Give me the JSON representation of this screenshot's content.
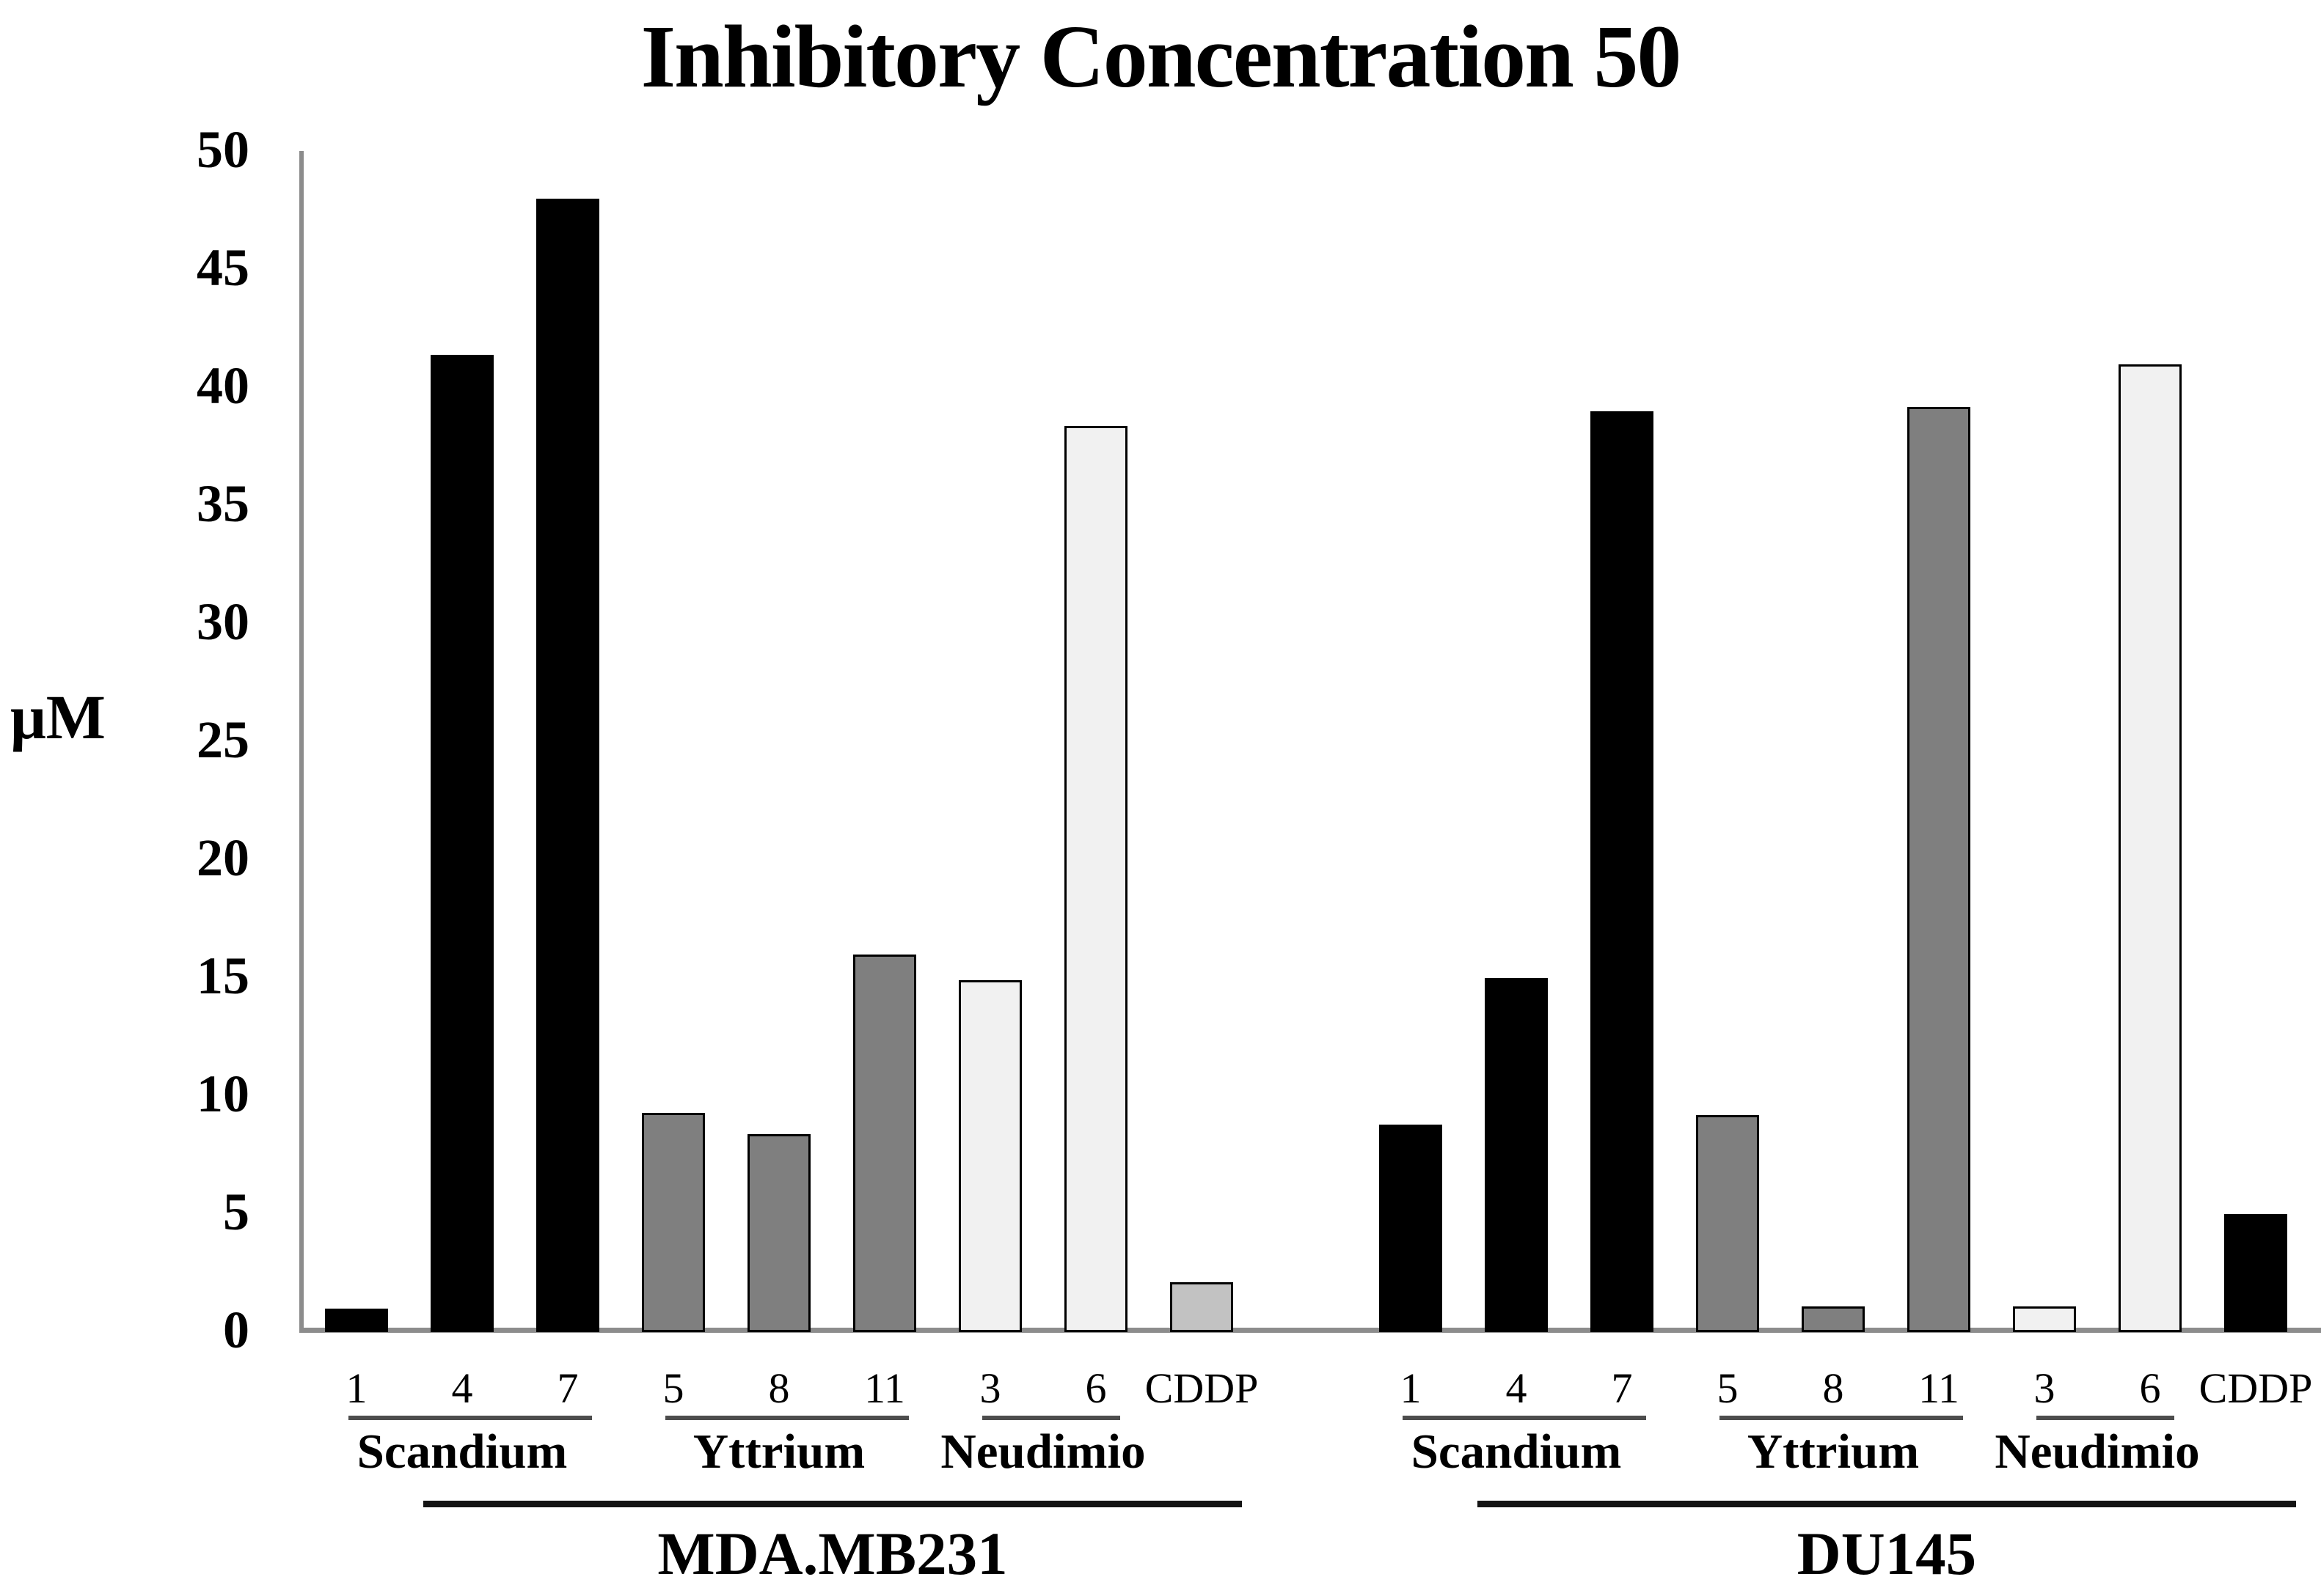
{
  "chart_data": {
    "type": "bar",
    "title": "Inhibitory Concentration 50",
    "ylabel": "μM",
    "xlabel": "",
    "ylim": [
      0,
      50
    ],
    "y_ticks": [
      0,
      5,
      10,
      15,
      20,
      25,
      30,
      35,
      40,
      45,
      50
    ],
    "grid": false,
    "legend": false,
    "bar_border_color": "#000000",
    "axis_color": "#8c8c8c",
    "groups": [
      {
        "name": "MDA.MB231",
        "subgroups": [
          {
            "name": "Scandium",
            "color": "#000000",
            "bars": [
              {
                "label": "1",
                "value": 1.0
              },
              {
                "label": "4",
                "value": 41.4
              },
              {
                "label": "7",
                "value": 48.0
              }
            ]
          },
          {
            "name": "Yttrium",
            "color": "#7f7f7f",
            "bars": [
              {
                "label": "5",
                "value": 9.3
              },
              {
                "label": "8",
                "value": 8.4
              },
              {
                "label": "11",
                "value": 16.0
              }
            ]
          },
          {
            "name": "Neudimio",
            "color": "#f1f1f1",
            "bars": [
              {
                "label": "3",
                "value": 14.9
              },
              {
                "label": "6",
                "value": 38.4
              }
            ]
          },
          {
            "name": "",
            "color": "#c2c2c2",
            "bars": [
              {
                "label": "CDDP",
                "value": 2.1
              }
            ]
          }
        ]
      },
      {
        "name": "DU145",
        "subgroups": [
          {
            "name": "Scandium",
            "color": "#000000",
            "bars": [
              {
                "label": "1",
                "value": 8.8
              },
              {
                "label": "4",
                "value": 15.0
              },
              {
                "label": "7",
                "value": 39.0
              }
            ]
          },
          {
            "name": "Yttrium",
            "color": "#7f7f7f",
            "bars": [
              {
                "label": "5",
                "value": 9.2
              },
              {
                "label": "8",
                "value": 1.1
              },
              {
                "label": "11",
                "value": 39.2
              }
            ]
          },
          {
            "name": "Neudimio",
            "color": "#f1f1f1",
            "bars": [
              {
                "label": "3",
                "value": 1.1
              },
              {
                "label": "6",
                "value": 41.0
              }
            ]
          },
          {
            "name": "",
            "color": "#000000",
            "bars": [
              {
                "label": "CDDP",
                "value": 5.0
              }
            ]
          }
        ]
      }
    ]
  }
}
